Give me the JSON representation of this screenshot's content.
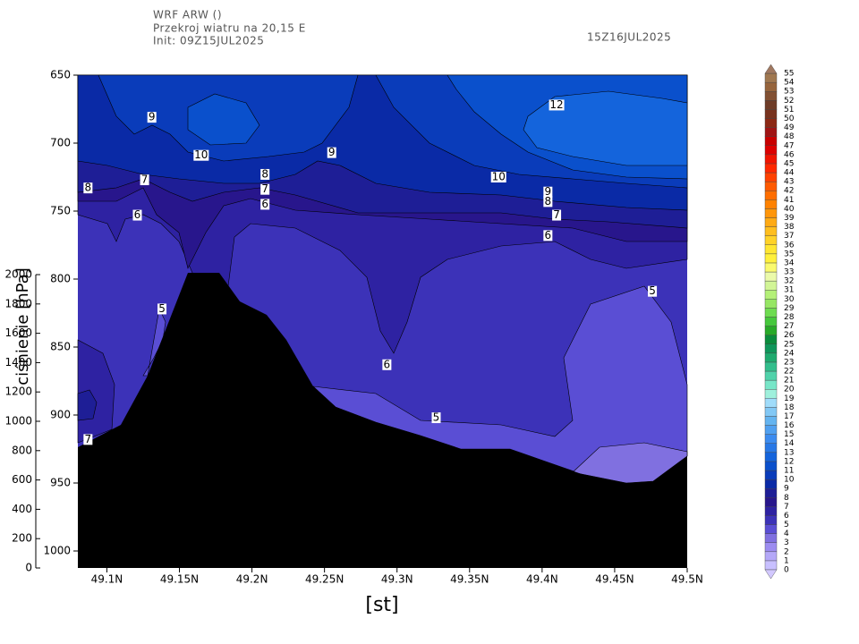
{
  "header": {
    "model": "WRF ARW ()",
    "subtitle": "Przekroj wiatru na 20,15 E",
    "init": "Init: 09Z15JUL2025",
    "valid": "15Z16JUL2025"
  },
  "chart_data": {
    "type": "contour",
    "xlabel": "[st]",
    "ylabel": "ciśnienie [hPa]",
    "xlim": [
      49.08,
      49.5
    ],
    "xticks": [
      {
        "value": 49.1,
        "label": "49.1N"
      },
      {
        "value": 49.15,
        "label": "49.15N"
      },
      {
        "value": 49.2,
        "label": "49.2N"
      },
      {
        "value": 49.25,
        "label": "49.25N"
      },
      {
        "value": 49.3,
        "label": "49.3N"
      },
      {
        "value": 49.35,
        "label": "49.35N"
      },
      {
        "value": 49.4,
        "label": "49.4N"
      },
      {
        "value": 49.45,
        "label": "49.45N"
      },
      {
        "value": 49.5,
        "label": "49.5N"
      }
    ],
    "ylim": [
      1012.5,
      650
    ],
    "yticks": [
      650,
      700,
      750,
      800,
      850,
      900,
      950,
      1000
    ],
    "y2lim": [
      0,
      3360
    ],
    "y2ticks": [
      0,
      200,
      400,
      600,
      800,
      1000,
      1200,
      1400,
      1600,
      1800,
      2000
    ],
    "contour_labels": [
      {
        "value": 9,
        "x": 49.131,
        "y": 681
      },
      {
        "value": 10,
        "x": 49.165,
        "y": 709
      },
      {
        "value": 9,
        "x": 49.255,
        "y": 707
      },
      {
        "value": 8,
        "x": 49.209,
        "y": 723
      },
      {
        "value": 7,
        "x": 49.209,
        "y": 734
      },
      {
        "value": 6,
        "x": 49.209,
        "y": 745
      },
      {
        "value": 7,
        "x": 49.126,
        "y": 727
      },
      {
        "value": 8,
        "x": 49.087,
        "y": 733
      },
      {
        "value": 6,
        "x": 49.121,
        "y": 753
      },
      {
        "value": 12,
        "x": 49.41,
        "y": 672
      },
      {
        "value": 10,
        "x": 49.37,
        "y": 725
      },
      {
        "value": 9,
        "x": 49.404,
        "y": 736
      },
      {
        "value": 8,
        "x": 49.404,
        "y": 743
      },
      {
        "value": 7,
        "x": 49.41,
        "y": 753
      },
      {
        "value": 6,
        "x": 49.404,
        "y": 768
      },
      {
        "value": 5,
        "x": 49.476,
        "y": 809
      },
      {
        "value": 5,
        "x": 49.138,
        "y": 822
      },
      {
        "value": 6,
        "x": 49.293,
        "y": 863
      },
      {
        "value": 5,
        "x": 49.327,
        "y": 902
      },
      {
        "value": 7,
        "x": 49.087,
        "y": 918
      }
    ],
    "colorbar": {
      "levels": [
        0,
        1,
        2,
        3,
        4,
        5,
        6,
        7,
        8,
        9,
        10,
        11,
        12,
        13,
        14,
        15,
        16,
        17,
        18,
        19,
        20,
        21,
        22,
        23,
        24,
        25,
        26,
        27,
        28,
        29,
        30,
        31,
        32,
        33,
        34,
        35,
        36,
        37,
        38,
        39,
        40,
        41,
        42,
        43,
        44,
        45,
        46,
        47,
        48,
        49,
        50,
        51,
        52,
        53,
        54,
        55
      ],
      "colors": [
        "#c8c0ff",
        "#b4a8f8",
        "#9c8cf0",
        "#8070e0",
        "#5a4ed4",
        "#3c32b8",
        "#2e22a2",
        "#28168c",
        "#1e1e96",
        "#0a2aa6",
        "#0a3cba",
        "#0a50cc",
        "#1464dc",
        "#2878e6",
        "#3c8cf0",
        "#50a0f0",
        "#64b4f0",
        "#82c8f5",
        "#a0dcfa",
        "#9ff0dc",
        "#78e6c8",
        "#50d2aa",
        "#32be8c",
        "#1eaa6e",
        "#0f965a",
        "#0a8c3c",
        "#28aa28",
        "#46c83c",
        "#6edc50",
        "#96e664",
        "#b4f078",
        "#d2f596",
        "#ebfaaa",
        "#fafa6e",
        "#fff03c",
        "#ffe632",
        "#ffd228",
        "#ffbe1e",
        "#ffaa14",
        "#ff960a",
        "#ff8200",
        "#ff6e00",
        "#ff5a00",
        "#ff4100",
        "#ff2800",
        "#f01400",
        "#dc0000",
        "#c80000",
        "#a01414",
        "#8c2814",
        "#78321e",
        "#6e3c28",
        "#825032",
        "#96643c",
        "#a07850"
      ],
      "over_color": "#a07860",
      "under_color": "#d2c8ff"
    }
  }
}
